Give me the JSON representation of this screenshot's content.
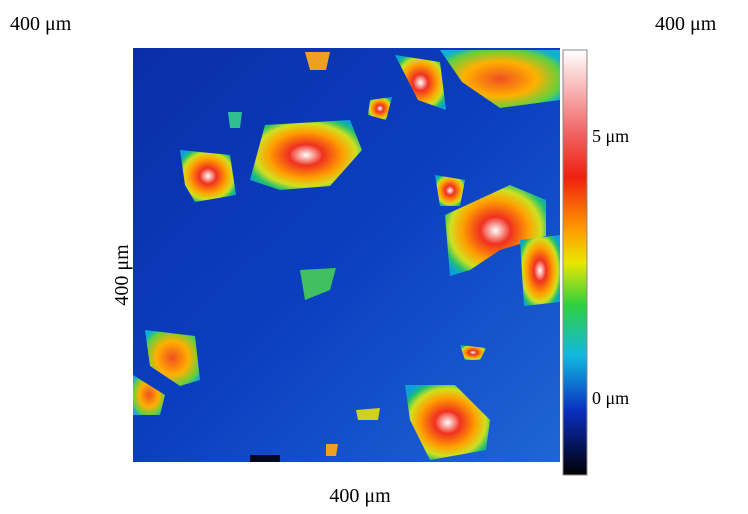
{
  "labels": {
    "top_left": "400 μm",
    "top_right": "400 μm",
    "left": "400 μm",
    "bottom": "400 μm"
  },
  "colorbar": {
    "top_label": "5 μm",
    "bottom_label": "0 μm"
  }
}
